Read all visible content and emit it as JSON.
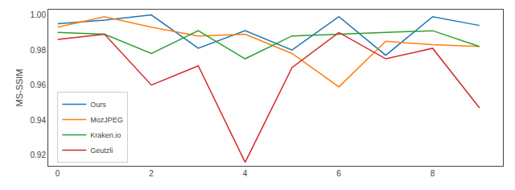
{
  "chart_data": {
    "type": "line",
    "ylabel": "MS-SSIM",
    "x": [
      0,
      1,
      2,
      3,
      4,
      5,
      6,
      7,
      8,
      9
    ],
    "xlim": [
      -0.2,
      9.5
    ],
    "xticks": [
      0,
      2,
      4,
      6,
      8
    ],
    "ylim": [
      0.914,
      1.003
    ],
    "yticks": [
      0.92,
      0.94,
      0.96,
      0.98,
      {
        "value": 1.0,
        "label": "1.00"
      }
    ],
    "series": [
      {
        "name": "Ours",
        "color": "#1f77b4",
        "values": [
          0.995,
          0.997,
          1.0,
          0.981,
          0.991,
          0.98,
          0.999,
          0.977,
          0.999,
          0.994
        ]
      },
      {
        "name": "MozJPEG",
        "color": "#ff7f0e",
        "values": [
          0.993,
          0.999,
          0.993,
          0.988,
          0.989,
          0.978,
          0.959,
          0.985,
          0.983,
          0.982
        ]
      },
      {
        "name": "Kraken.io",
        "color": "#2ca02c",
        "values": [
          0.99,
          0.989,
          0.978,
          0.991,
          0.975,
          0.988,
          0.989,
          0.99,
          0.991,
          0.982
        ]
      },
      {
        "name": "Geutzli",
        "color": "#d62728",
        "values": [
          0.986,
          0.989,
          0.96,
          0.971,
          0.916,
          0.97,
          0.99,
          0.975,
          0.981,
          0.947
        ]
      }
    ],
    "legend": "lower left",
    "grid": false
  }
}
